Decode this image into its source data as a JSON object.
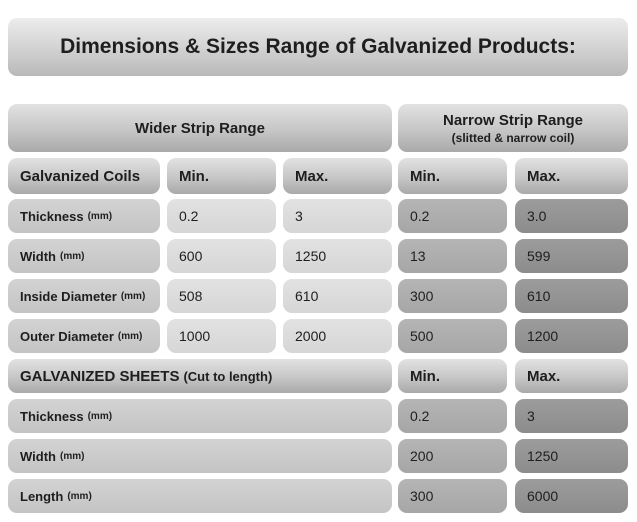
{
  "title": "Dimensions & Sizes Range of Galvanized Products:",
  "wider_header": "Wider Strip Range",
  "narrow_header": {
    "line1": "Narrow Strip Range",
    "line2": "(slitted & narrow coil)"
  },
  "coils": {
    "header": "Galvanized Coils",
    "min_label": "Min.",
    "max_label": "Max.",
    "rows": [
      {
        "label": "Thickness",
        "unit": "(mm)",
        "wider_min": "0.2",
        "wider_max": "3",
        "narrow_min": "0.2",
        "narrow_max": "3.0"
      },
      {
        "label": "Width",
        "unit": "(mm)",
        "wider_min": "600",
        "wider_max": "1250",
        "narrow_min": "13",
        "narrow_max": "599"
      },
      {
        "label": "Inside Diameter",
        "unit": "(mm)",
        "wider_min": "508",
        "wider_max": "610",
        "narrow_min": "300",
        "narrow_max": "610"
      },
      {
        "label": "Outer Diameter",
        "unit": "(mm)",
        "wider_min": "1000",
        "wider_max": "2000",
        "narrow_min": "500",
        "narrow_max": "1200"
      }
    ]
  },
  "sheets": {
    "header": "GALVANIZED SHEETS",
    "note": "(Cut to length)",
    "min_label": "Min.",
    "max_label": "Max.",
    "rows": [
      {
        "label": "Thickness",
        "unit": "(mm)",
        "min": "0.2",
        "max": "3"
      },
      {
        "label": "Width",
        "unit": "(mm)",
        "min": "200",
        "max": "1250"
      },
      {
        "label": "Length",
        "unit": "(mm)",
        "min": "300",
        "max": "6000"
      }
    ]
  }
}
